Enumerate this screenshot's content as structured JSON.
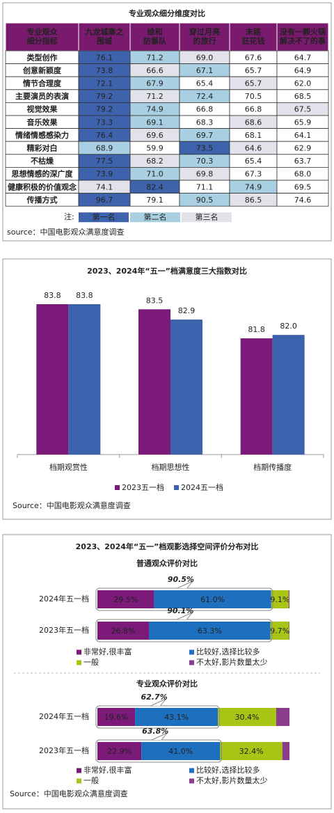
{
  "table": {
    "title": "专业观众细分维度对比",
    "header": [
      "专业观众\n细分指标",
      "九龙城寨之\n围城",
      "维和\n防暴队",
      "穿过月亮\n的旅行",
      "末路\n狂花钱",
      "没有一颗火锅\n解决不了的事"
    ],
    "rows": [
      [
        "类型创作",
        "76.1",
        "71.2",
        "69.0",
        "67.6",
        "64.7"
      ],
      [
        "创意新颖度",
        "73.8",
        "66.6",
        "67.1",
        "65.7",
        "64.9"
      ],
      [
        "情节合理度",
        "72.1",
        "67.9",
        "65.4",
        "65.7",
        "62.0"
      ],
      [
        "主要演员的表演",
        "79.2",
        "71.2",
        "72.4",
        "70.5",
        "68.5"
      ],
      [
        "视觉效果",
        "79.2",
        "74.9",
        "66.8",
        "66.8",
        "67.5"
      ],
      [
        "音乐效果",
        "73.3",
        "69.1",
        "68.3",
        "68.6",
        "65.9"
      ],
      [
        "情绪情感感染力",
        "76.4",
        "69.6",
        "69.7",
        "68.1",
        "64.1"
      ],
      [
        "精彩对白",
        "68.9",
        "59.9",
        "73.5",
        "64.6",
        "62.9"
      ],
      [
        "不枯燥",
        "77.5",
        "68.2",
        "70.3",
        "65.4",
        "63.7"
      ],
      [
        "思想情感的深广度",
        "73.9",
        "71.0",
        "69.8",
        "67.3",
        "68.0"
      ],
      [
        "健康积极的价值观念",
        "74.1",
        "82.4",
        "71.1",
        "74.9",
        "69.5"
      ],
      [
        "传播方式",
        "96.7",
        "79.1",
        "90.5",
        "86.5",
        "74.6"
      ]
    ],
    "note": "注:",
    "legend": [
      "第一名",
      "第二名",
      "第三名"
    ],
    "rank_colors": [
      "#3f62ad",
      "#a9d0e2",
      "#e2e2ea"
    ],
    "header_color": "#7a1a6e",
    "source": "source：中国电影观众满意度调查"
  },
  "chart_data": [
    {
      "type": "bar",
      "title": "2023、2024年“五一”档满意度三大指数对比",
      "categories": [
        "档期观赏性",
        "档期思想性",
        "档期传播度"
      ],
      "series": [
        {
          "name": "2023五一档",
          "color": "#7b1a78",
          "values": [
            83.8,
            83.5,
            81.8
          ],
          "value_labels": [
            "83.8",
            "83.5",
            "81.8"
          ]
        },
        {
          "name": "2024五一档",
          "color": "#3d62ad",
          "values": [
            83.8,
            82.9,
            82.0
          ],
          "value_labels": [
            "83.8",
            "82.9",
            "82.0"
          ]
        }
      ],
      "ylim": [
        75,
        86
      ],
      "legend": "bottom",
      "source": "Source：中国电影观众满意度调查"
    },
    {
      "type": "stacked_bar",
      "title": "2023、2024年“五一”档观影选择空间评价分布对比",
      "subtitle": "普通观众评价对比",
      "categories": [
        "2024年五一档",
        "2023年五一档"
      ],
      "series": [
        {
          "name": "非常好,很丰富",
          "color": "#7b1a78",
          "values": [
            29.5,
            26.8
          ],
          "value_labels": [
            "29.5%",
            "26.8%"
          ]
        },
        {
          "name": "比较好,选择比较多",
          "color": "#1f6fbf",
          "values": [
            61.0,
            63.3
          ],
          "value_labels": [
            "61.0%",
            "63.3%"
          ]
        },
        {
          "name": "一般",
          "color": "#a8c414",
          "values": [
            9.1,
            9.7
          ],
          "value_labels": [
            "9.1%",
            "9.7%"
          ]
        },
        {
          "name": "不太好,影片数量太少",
          "color": "#8a3d8a",
          "values": [
            0.4,
            0.2
          ]
        }
      ],
      "annotations": [
        "90.5%",
        "90.1%"
      ],
      "xlim": [
        0,
        100
      ],
      "legend": "bottom"
    },
    {
      "type": "stacked_bar",
      "subtitle": "专业观众评价对比",
      "categories": [
        "2024年五一档",
        "2023年五一档"
      ],
      "series": [
        {
          "name": "非常好,很丰富",
          "color": "#7b1a78",
          "values": [
            19.6,
            22.9
          ],
          "value_labels": [
            "19.6%",
            "22.9%"
          ]
        },
        {
          "name": "比较好,选择比较多",
          "color": "#1f6fbf",
          "values": [
            43.1,
            41.0
          ],
          "value_labels": [
            "43.1%",
            "41.0%"
          ]
        },
        {
          "name": "一般",
          "color": "#a8c414",
          "values": [
            30.4,
            32.4
          ],
          "value_labels": [
            "30.4%",
            "32.4%"
          ]
        },
        {
          "name": "不太好,影片数量太少",
          "color": "#8a3d8a",
          "values": [
            6.9,
            3.7
          ]
        }
      ],
      "annotations": [
        "62.7%",
        "63.8%"
      ],
      "xlim": [
        0,
        100
      ],
      "legend": "bottom",
      "source": "Source：中国电影观众满意度调查"
    }
  ]
}
